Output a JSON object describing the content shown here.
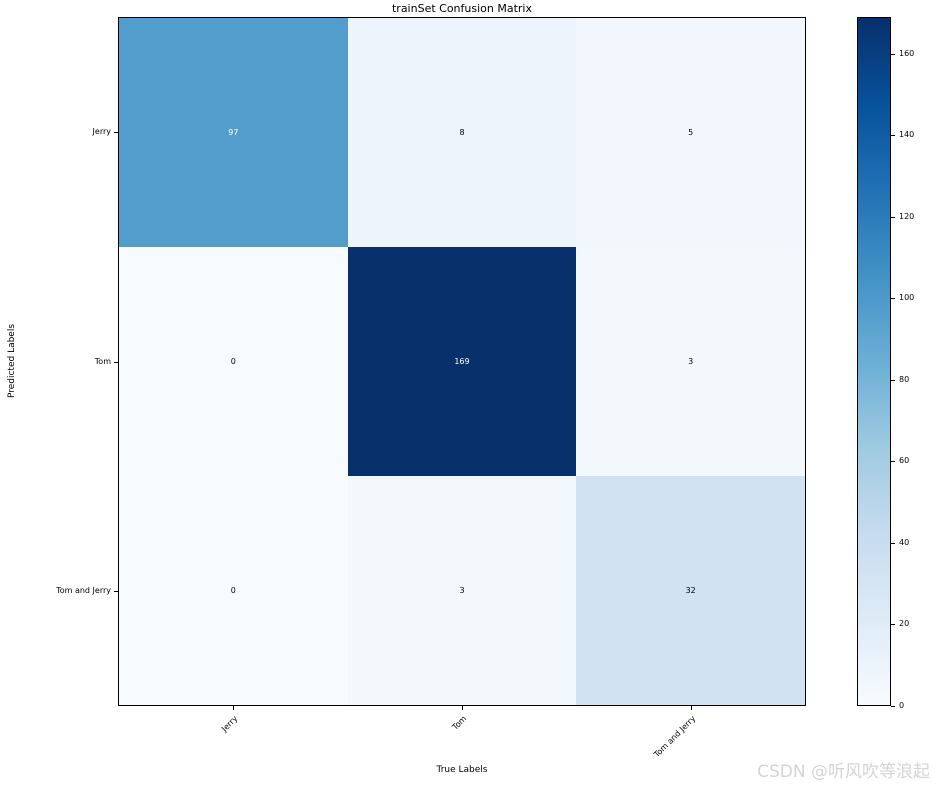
{
  "title": "trainSet Confusion Matrix",
  "watermark": {
    "text": "CSDN @听风吹等浪起",
    "color": "#d4d4d4"
  },
  "chart_data": {
    "type": "heatmap",
    "title": "trainSet Confusion Matrix",
    "xlabel": "True Labels",
    "ylabel": "Predicted Labels",
    "x_categories": [
      "Jerry",
      "Tom",
      "Tom and Jerry"
    ],
    "y_categories": [
      "Jerry",
      "Tom",
      "Tom and Jerry"
    ],
    "matrix": [
      [
        97,
        8,
        5
      ],
      [
        0,
        169,
        3
      ],
      [
        0,
        3,
        32
      ]
    ],
    "vmin": 0,
    "vmax": 169,
    "colormap": "Blues",
    "colorbar_ticks": [
      0,
      20,
      40,
      60,
      80,
      100,
      120,
      140,
      160
    ],
    "colormap_stops": [
      "#f7fbff",
      "#deebf7",
      "#c6dbef",
      "#9ecae1",
      "#6baed6",
      "#4292c6",
      "#2171b5",
      "#08519c",
      "#08306b"
    ],
    "cell_colors": [
      [
        "#539dcd",
        "#edf4fb",
        "#f1f7fd"
      ],
      [
        "#f7fbff",
        "#08306b",
        "#f3f8fd"
      ],
      [
        "#f7fbff",
        "#f3f8fd",
        "#d1e2f2"
      ]
    ],
    "cell_text_colors": [
      [
        "#ffffff",
        "#000000",
        "#000000"
      ],
      [
        "#000000",
        "#ffffff",
        "#000000"
      ],
      [
        "#000000",
        "#000000",
        "#000000"
      ]
    ],
    "legend_position": "right-colorbar",
    "grid": false
  }
}
